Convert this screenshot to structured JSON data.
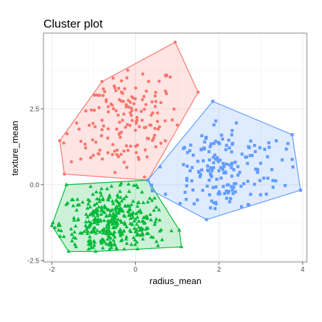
{
  "chart_data": {
    "type": "scatter",
    "title": "Cluster plot",
    "xlabel": "radius_mean",
    "ylabel": "texture_mean",
    "xlim": [
      -2.2,
      4.1
    ],
    "ylim": [
      -2.55,
      5.0
    ],
    "x_ticks": [
      -2,
      0,
      2,
      4
    ],
    "x_tick_labels": [
      "-2",
      "0",
      "2",
      "4"
    ],
    "y_ticks": [
      -2.5,
      0.0,
      2.5
    ],
    "y_tick_labels": [
      "-2.5",
      "0.0",
      "2.5"
    ],
    "grid": true,
    "legend": "none",
    "series": [
      {
        "color": "#F8766D",
        "marker": "circle",
        "hull": [
          [
            -1.81,
            1.45
          ],
          [
            -0.8,
            3.4
          ],
          [
            0.95,
            4.7
          ],
          [
            1.5,
            3.05
          ],
          [
            0.3,
            0.15
          ],
          [
            -1.7,
            0.35
          ]
        ],
        "n_points": 170
      },
      {
        "color": "#00BA38",
        "marker": "triangle",
        "hull": [
          [
            -2.0,
            -1.35
          ],
          [
            -1.6,
            -2.2
          ],
          [
            -0.95,
            -2.2
          ],
          [
            1.1,
            -2.05
          ],
          [
            1.05,
            -1.5
          ],
          [
            0.3,
            0.15
          ],
          [
            -1.65,
            0.0
          ]
        ],
        "n_points": 380
      },
      {
        "color": "#619CFF",
        "marker": "square",
        "hull": [
          [
            0.3,
            0.15
          ],
          [
            1.85,
            2.75
          ],
          [
            3.75,
            1.65
          ],
          [
            3.95,
            -0.18
          ],
          [
            1.7,
            -1.15
          ],
          [
            0.4,
            -0.2
          ]
        ],
        "n_points": 180
      }
    ]
  }
}
